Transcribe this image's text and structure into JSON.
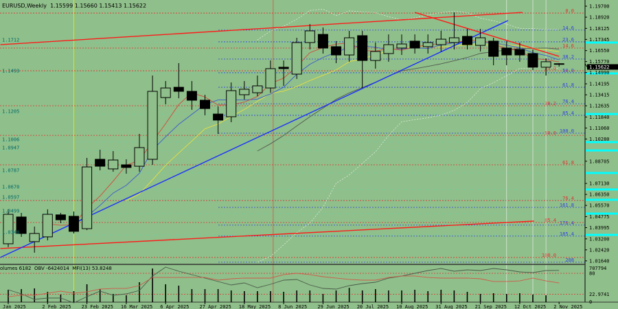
{
  "header": {
    "symbol": "EURUSD,Weekly",
    "open": "1.15599",
    "high": "1.15660",
    "low": "1.15413",
    "close": "1.15622"
  },
  "indicator_header": {
    "volumes": "olumes 6182",
    "obv": "OBV -6424014",
    "mfi": "MFI(13) 53.8248"
  },
  "colors": {
    "background": "#8fbf8a",
    "bull_candle": "#8fbf8a",
    "bear_candle": "#000000",
    "fib_red": "#e03030",
    "fib_blue": "#3040e0",
    "trend_red": "#ff1a1a",
    "trend_blue": "#1a2eff",
    "highlight": "#00ffff",
    "yellow_marker": "#e8e800"
  },
  "chart_data": {
    "type": "candlestick",
    "title": "EURUSD,Weekly",
    "ylim": [
      1.012,
      1.199
    ],
    "y_ticks": [
      "1.19700",
      "1.18920",
      "1.18125",
      "1.17345",
      "1.16550",
      "1.15770",
      "1.14990",
      "1.14195",
      "1.13415",
      "1.12635",
      "1.11840",
      "1.11060",
      "1.10280",
      "1.08705",
      "1.07130",
      "1.06350",
      "1.05570",
      "1.04775",
      "1.03995",
      "1.03200",
      "1.02420",
      "1.01640"
    ],
    "current_price": "1.15622",
    "x_labels": [
      {
        "i": 0,
        "label": "Jan 2025"
      },
      {
        "i": 3,
        "label": "2 Feb 2025"
      },
      {
        "i": 6,
        "label": "23 Feb 2025"
      },
      {
        "i": 9,
        "label": "16 Mar 2025"
      },
      {
        "i": 12,
        "label": "6 Apr 2025"
      },
      {
        "i": 15,
        "label": "27 Apr 2025"
      },
      {
        "i": 18,
        "label": "18 May 2025"
      },
      {
        "i": 21,
        "label": "8 Jun 2025"
      },
      {
        "i": 24,
        "label": "29 Jun 2025"
      },
      {
        "i": 27,
        "label": "20 Jul 2025"
      },
      {
        "i": 30,
        "label": "10 Aug 2025"
      },
      {
        "i": 33,
        "label": "31 Aug 2025"
      },
      {
        "i": 36,
        "label": "21 Sep 2025"
      },
      {
        "i": 39,
        "label": "12 Oct 2025"
      },
      {
        "i": 42,
        "label": "2 Nov 2025"
      }
    ],
    "ohlc": [
      [
        1.0285,
        1.0529,
        1.0261,
        1.0494
      ],
      [
        1.0475,
        1.0504,
        1.0334,
        1.0358
      ],
      [
        1.03,
        1.0407,
        1.0222,
        1.0358
      ],
      [
        1.0334,
        1.0529,
        1.0309,
        1.0494
      ],
      [
        1.049,
        1.0504,
        1.0431,
        1.0455
      ],
      [
        1.048,
        1.0514,
        1.0358,
        1.0373
      ],
      [
        1.0392,
        1.0894,
        1.0382,
        1.083
      ],
      [
        1.0884,
        1.0952,
        1.0806,
        1.0835
      ],
      [
        1.0816,
        1.0942,
        1.0796,
        1.0879
      ],
      [
        1.0845,
        1.0884,
        1.0782,
        1.0826
      ],
      [
        1.0835,
        1.1064,
        1.0796,
        1.0967
      ],
      [
        1.0884,
        1.1478,
        1.0845,
        1.1366
      ],
      [
        1.1322,
        1.1439,
        1.1274,
        1.139
      ],
      [
        1.1395,
        1.1566,
        1.1317,
        1.1366
      ],
      [
        1.1366,
        1.1439,
        1.1235,
        1.1303
      ],
      [
        1.1303,
        1.1342,
        1.1196,
        1.1244
      ],
      [
        1.1205,
        1.1259,
        1.1064,
        1.1162
      ],
      [
        1.1186,
        1.1429,
        1.1147,
        1.1371
      ],
      [
        1.1342,
        1.1439,
        1.1308,
        1.1381
      ],
      [
        1.1356,
        1.1478,
        1.1332,
        1.1405
      ],
      [
        1.139,
        1.1585,
        1.1356,
        1.1527
      ],
      [
        1.1537,
        1.1585,
        1.1405,
        1.1527
      ],
      [
        1.1488,
        1.1746,
        1.1454,
        1.1712
      ],
      [
        1.1712,
        1.1843,
        1.1663,
        1.1795
      ],
      [
        1.177,
        1.1819,
        1.1634,
        1.1673
      ],
      [
        1.1683,
        1.1722,
        1.1566,
        1.1624
      ],
      [
        1.1624,
        1.1795,
        1.1576,
        1.1746
      ],
      [
        1.1761,
        1.1795,
        1.139,
        1.1585
      ],
      [
        1.1585,
        1.1712,
        1.1527,
        1.1649
      ],
      [
        1.1634,
        1.177,
        1.1576,
        1.1697
      ],
      [
        1.1673,
        1.177,
        1.1624,
        1.1702
      ],
      [
        1.1722,
        1.177,
        1.1634,
        1.1673
      ],
      [
        1.1683,
        1.177,
        1.1634,
        1.1712
      ],
      [
        1.1697,
        1.1795,
        1.1649,
        1.1736
      ],
      [
        1.1712,
        1.1926,
        1.1663,
        1.1746
      ],
      [
        1.1756,
        1.1809,
        1.1663,
        1.1697
      ],
      [
        1.1692,
        1.1809,
        1.1649,
        1.1746
      ],
      [
        1.1722,
        1.1746,
        1.1551,
        1.1614
      ],
      [
        1.1673,
        1.1722,
        1.1551,
        1.1624
      ],
      [
        1.1663,
        1.1712,
        1.1576,
        1.1624
      ],
      [
        1.1634,
        1.1663,
        1.1517,
        1.1537
      ],
      [
        1.1537,
        1.16,
        1.1478,
        1.1576
      ],
      [
        1.15599,
        1.1566,
        1.15413,
        1.15622
      ]
    ],
    "fib_red": [
      {
        "label": "0.0",
        "price": 1.1921
      },
      {
        "label": "14.6",
        "price": 1.1673
      },
      {
        "label": "23.6",
        "price": 1.1512
      },
      {
        "label": "38.2",
        "price": 1.1264
      },
      {
        "label": "50.0",
        "price": 1.1054
      },
      {
        "label": "61.8",
        "price": 1.0845
      },
      {
        "label": "76.4",
        "price": 1.0592
      },
      {
        "label": "85.4",
        "price": 1.0436
      },
      {
        "label": "100.0",
        "price": 1.0188
      }
    ],
    "fib_blue": [
      {
        "label": "14.6",
        "price": 1.18
      },
      {
        "label": "23.6",
        "price": 1.1717
      },
      {
        "label": "38.2",
        "price": 1.1595
      },
      {
        "label": "50.0",
        "price": 1.1498
      },
      {
        "label": "61.8",
        "price": 1.1395
      },
      {
        "label": "76.4",
        "price": 1.1278
      },
      {
        "label": "85.4",
        "price": 1.1196
      },
      {
        "label": "100.0",
        "price": 1.1069
      },
      {
        "label": "161.8",
        "price": 1.0543
      },
      {
        "label": "176.4",
        "price": 1.0417
      },
      {
        "label": "185.4",
        "price": 1.0339
      },
      {
        "label": "208",
        "price": 1.0154
      }
    ],
    "highlight_levels": [
      1.1712,
      1.1493,
      1.1205,
      1.1006,
      1.0947,
      1.0787,
      1.067,
      1.0597,
      1.0499,
      1.0348
    ],
    "trendlines": [
      {
        "color": "red",
        "points": [
          [
            -0.6,
            1.1697
          ],
          [
            39.2,
            1.1926
          ]
        ]
      },
      {
        "color": "red",
        "points": [
          [
            -0.6,
            1.0251
          ],
          [
            40.1,
            1.0446
          ]
        ]
      },
      {
        "color": "blue",
        "points": [
          [
            -0.6,
            1.0188
          ],
          [
            38.1,
            1.1868
          ]
        ]
      },
      {
        "color": "red",
        "points": [
          [
            31.0,
            1.1926
          ],
          [
            42.0,
            1.1614
          ]
        ]
      }
    ],
    "vertical_markers": [
      {
        "i": 5,
        "color": "yellow"
      },
      {
        "i": 20.2,
        "color": "red"
      },
      {
        "i": 38,
        "color": "white"
      },
      {
        "i": 40,
        "color": "white"
      },
      {
        "i": 41,
        "color": "white"
      }
    ],
    "volume_axis": [
      "707794",
      "0"
    ],
    "mfi_axis": [
      "80",
      "22.9741"
    ],
    "volume": [
      260000,
      274000,
      289000,
      217000,
      159000,
      231000,
      376000,
      274000,
      173000,
      144000,
      419000,
      707794,
      376000,
      347000,
      274000,
      274000,
      274000,
      246000,
      231000,
      231000,
      231000,
      217000,
      246000,
      246000,
      173000,
      246000,
      300000,
      246000,
      274000,
      246000,
      246000,
      260000,
      231000,
      260000,
      246000,
      217000,
      173000,
      188000,
      173000,
      188000,
      159000,
      144000,
      6182
    ],
    "obv": [
      -9.24,
      -9.84,
      -10.64,
      -10.44,
      -10.44,
      -11.14,
      -10.24,
      -9.44,
      -10.04,
      -9.84,
      -9.34,
      -7.24,
      -5.94,
      -6.54,
      -7.04,
      -7.54,
      -8.04,
      -8.54,
      -8.24,
      -8.94,
      -8.44,
      -7.84,
      -7.74,
      -8.54,
      -9.04,
      -9.14,
      -8.64,
      -8.34,
      -8.14,
      -7.54,
      -7.24,
      -6.84,
      -6.44,
      -6.14,
      -6.54,
      -6.34,
      -6.44,
      -6.14,
      -6.34,
      -6.64,
      -6.74,
      -6.44,
      -6.42
    ],
    "mfi": [
      16.7,
      20.5,
      20.5,
      26.0,
      31.6,
      26.0,
      29.8,
      37.2,
      39.0,
      39.0,
      46.5,
      68.8,
      68.8,
      68.8,
      68.8,
      68.8,
      61.4,
      65.1,
      67.0,
      67.0,
      67.0,
      76.3,
      80.0,
      76.3,
      70.7,
      67.0,
      63.3,
      61.4,
      61.4,
      68.8,
      72.6,
      72.6,
      68.8,
      67.0,
      67.0,
      67.0,
      65.1,
      57.7,
      57.7,
      59.5,
      67.0,
      59.5,
      53.8
    ]
  }
}
